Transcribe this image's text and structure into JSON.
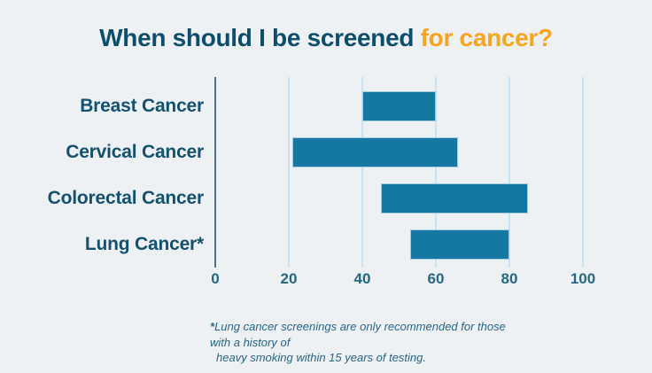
{
  "title": {
    "main": "When should I be screened ",
    "accent": "for cancer?"
  },
  "chart_data": {
    "type": "bar",
    "subtype": "floating-range-bars",
    "orientation": "horizontal",
    "title": "When should I be screened for cancer?",
    "categories": [
      "Breast Cancer",
      "Cervical Cancer",
      "Colorectal Cancer",
      "Lung Cancer*"
    ],
    "bars": [
      {
        "category": "Breast Cancer",
        "start": 40,
        "end": 60
      },
      {
        "category": "Cervical Cancer",
        "start": 21,
        "end": 66
      },
      {
        "category": "Colorectal Cancer",
        "start": 45,
        "end": 85
      },
      {
        "category": "Lung Cancer*",
        "start": 53,
        "end": 80
      }
    ],
    "xlabel": "",
    "ylabel": "",
    "xlim": [
      0,
      100
    ],
    "x_ticks": [
      0,
      20,
      40,
      60,
      80,
      100
    ],
    "grid": "vertical-gridlines-on",
    "legend": "none",
    "units": "age in years"
  },
  "footnote": {
    "marker": "*",
    "line1": "Lung cancer screenings are only recommended for those with a history of",
    "line2": "heavy smoking within 15 years of testing."
  },
  "colors": {
    "background": "#EEF1F4",
    "title_text": "#0E4D6C",
    "title_accent": "#F9A41D",
    "bar_fill": "#1478A3",
    "bar_stroke": "#9ECBE0",
    "grid_line": "#C9E3F2",
    "axis_line": "#4F707F",
    "category_label": "#13516F",
    "tick_label": "#266884",
    "footnote_text": "#2A6787"
  }
}
